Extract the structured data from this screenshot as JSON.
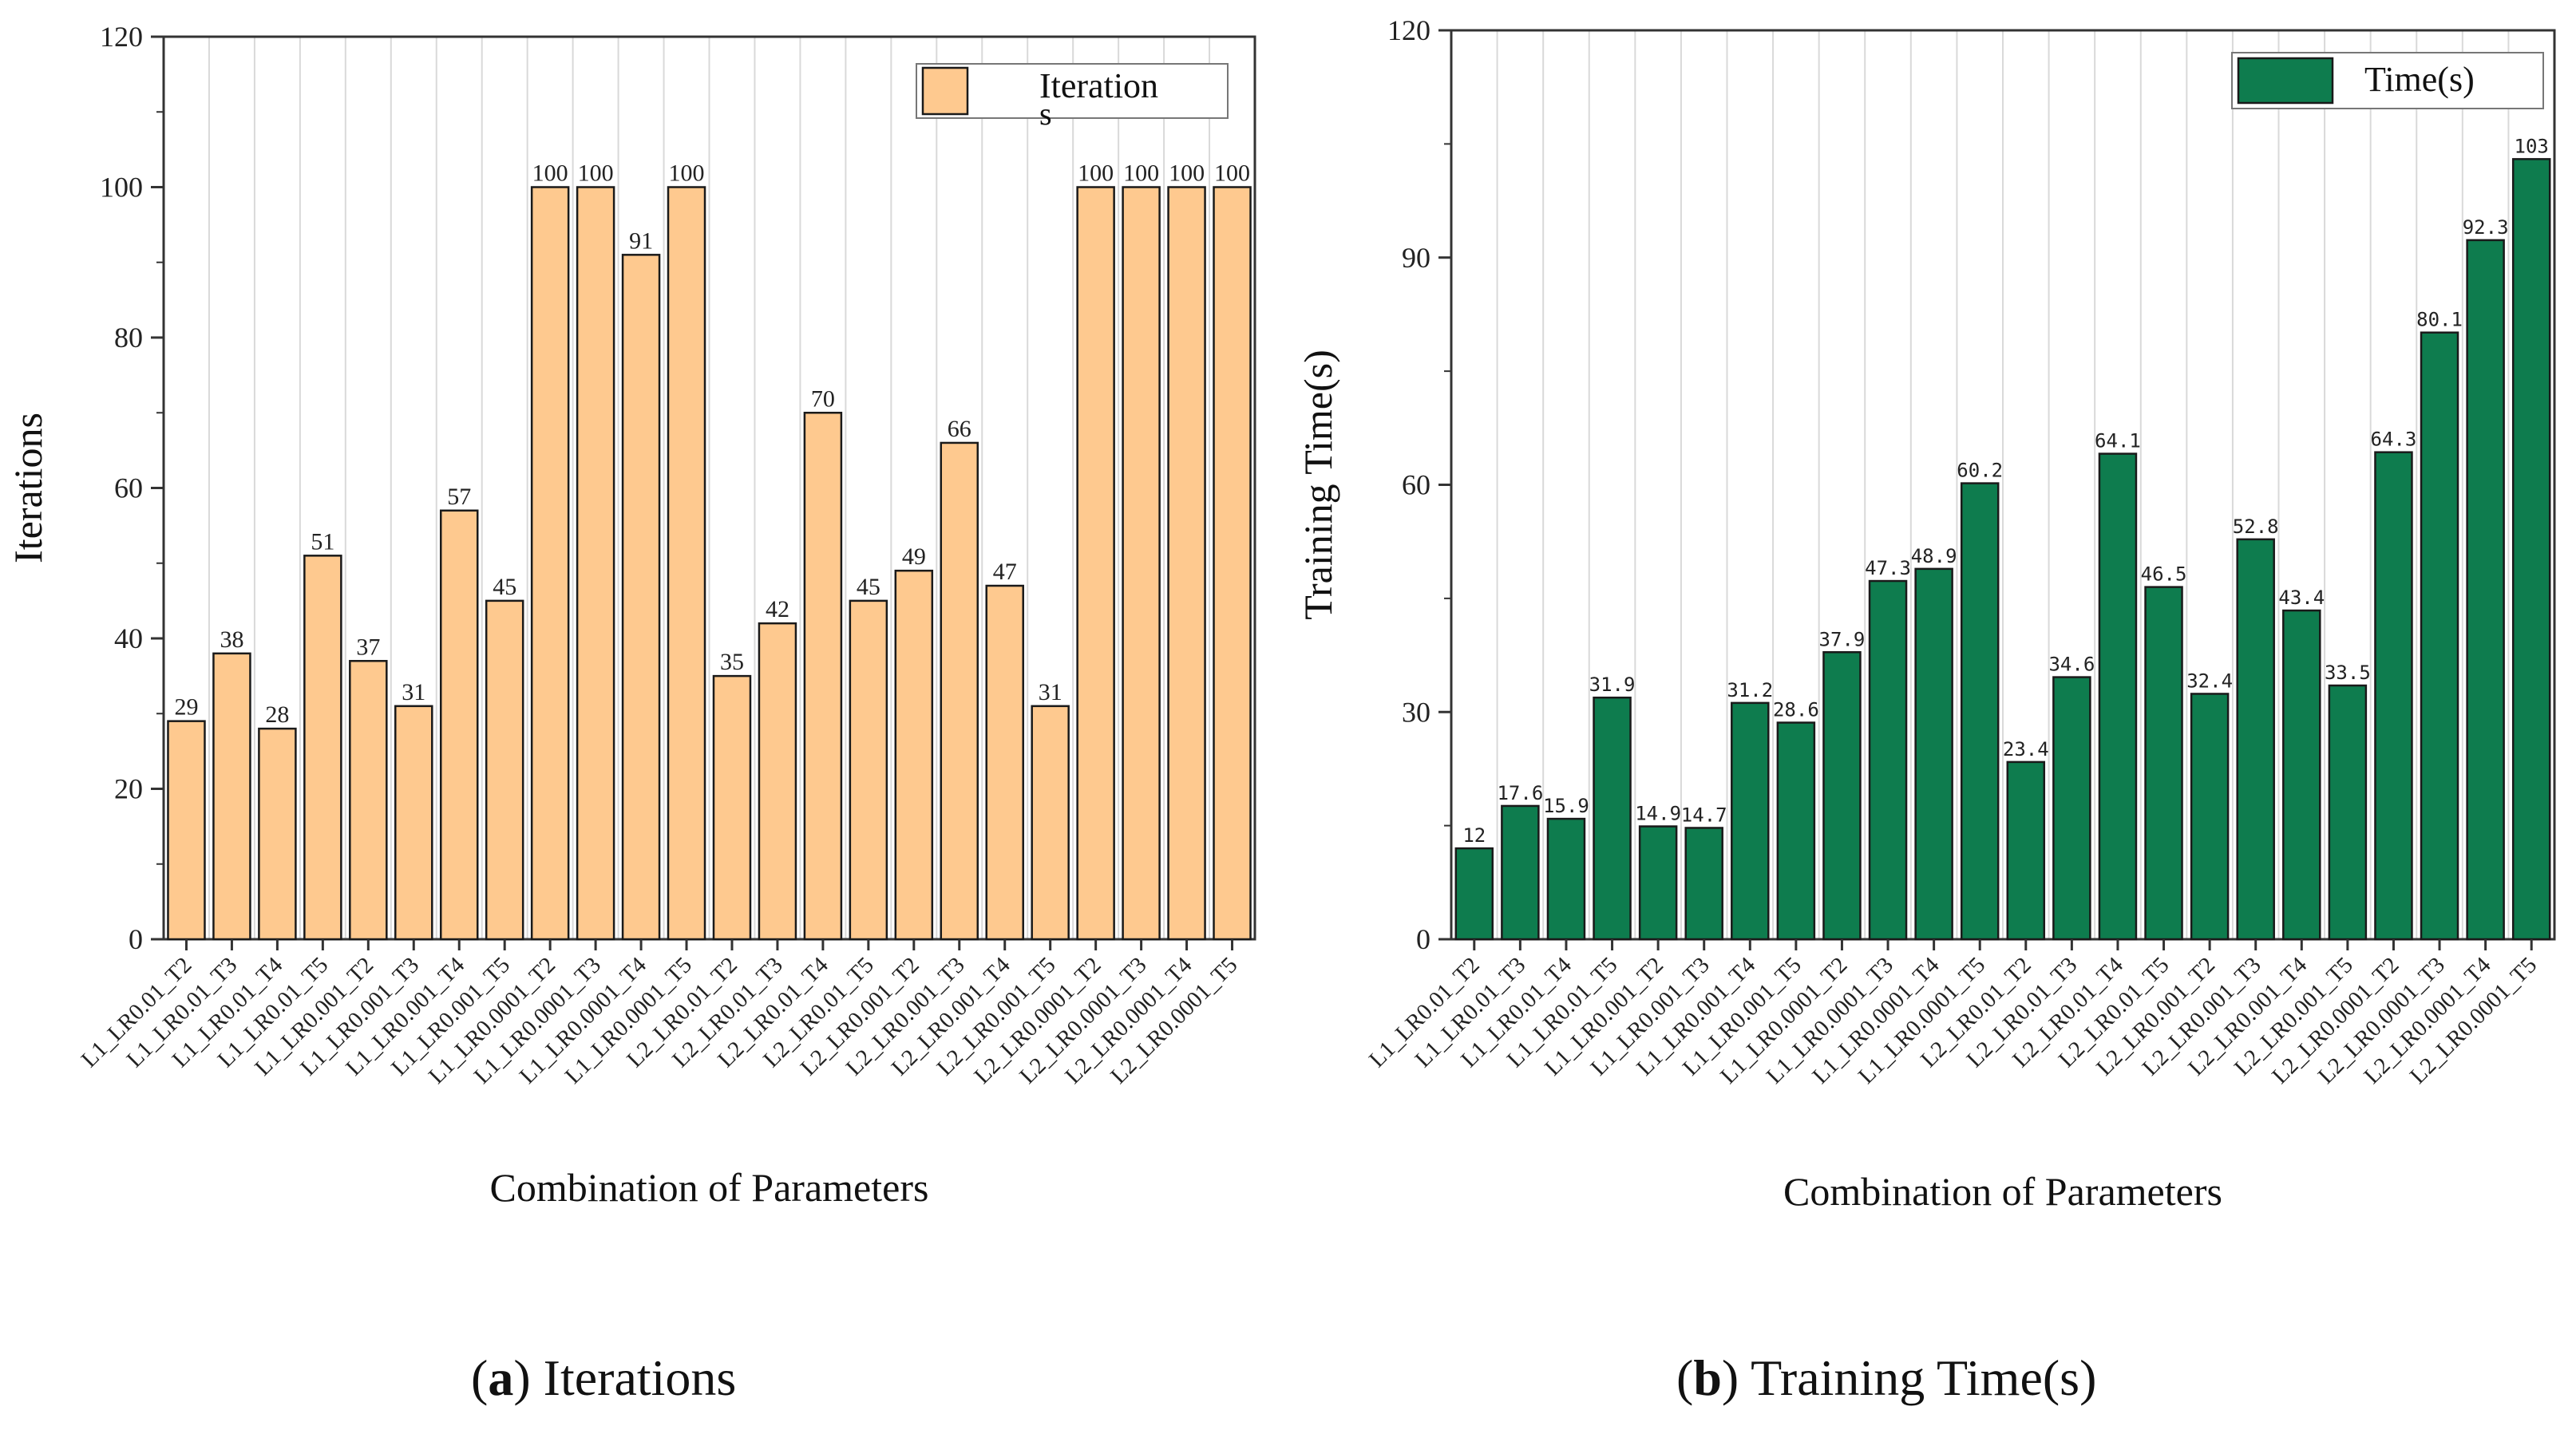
{
  "colors": {
    "iterations_bar": "#fec98f",
    "time_bar": "#0e7c4e",
    "grid": "#d9d9d9",
    "axis": "#333333"
  },
  "captions": {
    "a": {
      "letter": "a",
      "text": "Iterations"
    },
    "b": {
      "letter": "b",
      "text": "Training Time(s)"
    }
  },
  "chart_data": [
    {
      "type": "bar",
      "ylabel": "Iterations",
      "xlabel": "Combination of Parameters",
      "ylim": [
        0,
        120
      ],
      "yticks": [
        0,
        20,
        40,
        60,
        80,
        100,
        120
      ],
      "grid": true,
      "legend_position": "top-right",
      "categories": [
        "L1_LR0.01_T2",
        "L1_LR0.01_T3",
        "L1_LR0.01_T4",
        "L1_LR0.01_T5",
        "L1_LR0.001_T2",
        "L1_LR0.001_T3",
        "L1_LR0.001_T4",
        "L1_LR0.001_T5",
        "L1_LR0.0001_T2",
        "L1_LR0.0001_T3",
        "L1_LR0.0001_T4",
        "L1_LR0.0001_T5",
        "L2_LR0.01_T2",
        "L2_LR0.01_T3",
        "L2_LR0.01_T4",
        "L2_LR0.01_T5",
        "L2_LR0.001_T2",
        "L2_LR0.001_T3",
        "L2_LR0.001_T4",
        "L2_LR0.001_T5",
        "L2_LR0.0001_T2",
        "L2_LR0.0001_T3",
        "L2_LR0.0001_T4",
        "L2_LR0.0001_T5"
      ],
      "series": [
        {
          "name": "Iterations",
          "legend_line1": "Iteration",
          "legend_line2": "s",
          "values": [
            29,
            38,
            28,
            51,
            37,
            31,
            57,
            45,
            100,
            100,
            91,
            100,
            35,
            42,
            70,
            45,
            49,
            66,
            47,
            31,
            100,
            100,
            100,
            100
          ],
          "labels": [
            "29",
            "38",
            "28",
            "51",
            "37",
            "31",
            "57",
            "45",
            "100",
            "100",
            "91",
            "100",
            "35",
            "42",
            "70",
            "45",
            "49",
            "66",
            "47",
            "31",
            "100",
            "100",
            "100",
            "100"
          ]
        }
      ]
    },
    {
      "type": "bar",
      "ylabel": "Training Time(s)",
      "xlabel": "Combination of Parameters",
      "ylim": [
        0,
        120
      ],
      "yticks": [
        0,
        30,
        60,
        90,
        120
      ],
      "grid": true,
      "legend_position": "top-right",
      "categories": [
        "L1_LR0.01_T2",
        "L1_LR0.01_T3",
        "L1_LR0.01_T4",
        "L1_LR0.01_T5",
        "L1_LR0.001_T2",
        "L1_LR0.001_T3",
        "L1_LR0.001_T4",
        "L1_LR0.001_T5",
        "L1_LR0.0001_T2",
        "L1_LR0.0001_T3",
        "L1_LR0.0001_T4",
        "L1_LR0.0001_T5",
        "L2_LR0.01_T2",
        "L2_LR0.01_T3",
        "L2_LR0.01_T4",
        "L2_LR0.01_T5",
        "L2_LR0.001_T2",
        "L2_LR0.001_T3",
        "L2_LR0.001_T4",
        "L2_LR0.001_T5",
        "L2_LR0.0001_T2",
        "L2_LR0.0001_T3",
        "L2_LR0.0001_T4",
        "L2_LR0.0001_T5"
      ],
      "series": [
        {
          "name": "Time(s)",
          "values": [
            12,
            17.6,
            15.9,
            31.9,
            14.9,
            14.7,
            31.2,
            28.6,
            37.9,
            47.3,
            48.9,
            60.2,
            23.4,
            34.6,
            64.1,
            46.5,
            32.4,
            52.8,
            43.4,
            33.5,
            64.3,
            80.1,
            92.3,
            103
          ],
          "labels": [
            "12",
            "17.6",
            "15.9",
            "31.9",
            "14.9",
            "14.7",
            "31.2",
            "28.6",
            "37.9",
            "47.3",
            "48.9",
            "60.2",
            "23.4",
            "34.6",
            "64.1",
            "46.5",
            "32.4",
            "52.8",
            "43.4",
            "33.5",
            "64.3",
            "80.1",
            "92.3",
            "103"
          ]
        }
      ]
    }
  ]
}
